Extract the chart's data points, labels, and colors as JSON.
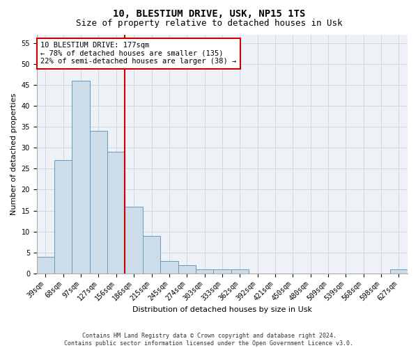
{
  "title1": "10, BLESTIUM DRIVE, USK, NP15 1TS",
  "title2": "Size of property relative to detached houses in Usk",
  "xlabel": "Distribution of detached houses by size in Usk",
  "ylabel": "Number of detached properties",
  "categories": [
    "39sqm",
    "68sqm",
    "97sqm",
    "127sqm",
    "156sqm",
    "186sqm",
    "215sqm",
    "245sqm",
    "274sqm",
    "303sqm",
    "333sqm",
    "362sqm",
    "392sqm",
    "421sqm",
    "450sqm",
    "480sqm",
    "509sqm",
    "539sqm",
    "568sqm",
    "598sqm",
    "627sqm"
  ],
  "values": [
    4,
    27,
    46,
    34,
    29,
    16,
    9,
    3,
    2,
    1,
    1,
    1,
    0,
    0,
    0,
    0,
    0,
    0,
    0,
    0,
    1
  ],
  "bar_color": "#ccdce8",
  "bar_edge_color": "#6699bb",
  "annotation_line1": "10 BLESTIUM DRIVE: 177sqm",
  "annotation_line2": "← 78% of detached houses are smaller (135)",
  "annotation_line3": "22% of semi-detached houses are larger (38) →",
  "annotation_box_color": "#ffffff",
  "annotation_box_edge": "#cc0000",
  "vline_color": "#cc0000",
  "vline_position": 4.5,
  "ylim": [
    0,
    57
  ],
  "yticks": [
    0,
    5,
    10,
    15,
    20,
    25,
    30,
    35,
    40,
    45,
    50,
    55
  ],
  "footer1": "Contains HM Land Registry data © Crown copyright and database right 2024.",
  "footer2": "Contains public sector information licensed under the Open Government Licence v3.0.",
  "background_color": "#eef2f6",
  "grid_color": "#d0d8e4",
  "title_fontsize": 10,
  "subtitle_fontsize": 9,
  "tick_fontsize": 7,
  "ylabel_fontsize": 8,
  "xlabel_fontsize": 8,
  "footer_fontsize": 6,
  "annot_fontsize": 7.5
}
